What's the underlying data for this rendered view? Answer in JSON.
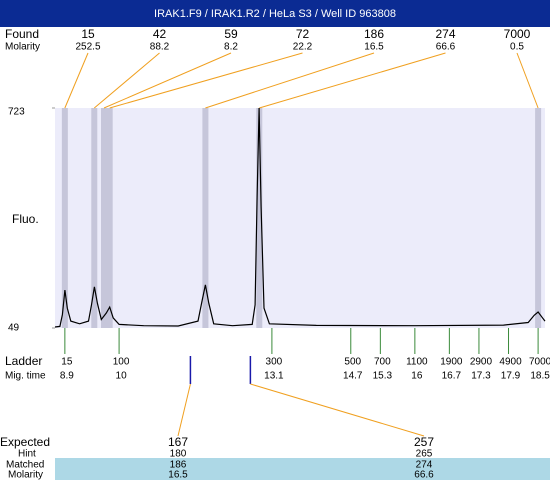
{
  "chart_data": {
    "type": "electropherogram",
    "title": "IRAK1.F9 / IRAK1.R2 / HeLa S3 / Well ID 963808",
    "y_label": "Fluo.",
    "x": [
      8.7,
      8.8,
      8.85,
      8.9,
      8.95,
      9.02,
      9.2,
      9.38,
      9.44,
      9.5,
      9.56,
      9.64,
      9.74,
      9.81,
      9.88,
      10.0,
      10.5,
      11.2,
      11.6,
      11.68,
      11.75,
      11.82,
      11.92,
      12.3,
      12.7,
      12.76,
      12.8,
      12.84,
      12.88,
      12.94,
      13.05,
      14.0,
      16.0,
      17.8,
      18.3,
      18.42,
      18.5,
      18.58,
      18.64
    ],
    "values": [
      52,
      54,
      90,
      165,
      110,
      70,
      62,
      70,
      120,
      175,
      125,
      75,
      95,
      113,
      80,
      60,
      56,
      55,
      70,
      130,
      181,
      125,
      62,
      56,
      60,
      120,
      450,
      723,
      420,
      110,
      62,
      57,
      56,
      58,
      66,
      88,
      98,
      82,
      70
    ],
    "xlim": [
      8.7,
      18.64
    ],
    "ylim": [
      49,
      723
    ],
    "yticks": [
      49,
      723
    ],
    "found": {
      "label": "Found",
      "molarity_label": "Molarity",
      "sizes": [
        15,
        42,
        59,
        72,
        186,
        274,
        7000
      ],
      "molarity": [
        252.5,
        88.2,
        8.2,
        22.2,
        16.5,
        66.6,
        0.5
      ]
    },
    "ladder": {
      "label": "Ladder",
      "time_label": "Mig. time",
      "sizes": [
        15,
        100,
        300,
        500,
        700,
        1100,
        1900,
        2900,
        4900,
        7000
      ],
      "times": [
        8.9,
        10,
        13.1,
        14.7,
        15.3,
        16,
        16.7,
        17.3,
        17.9,
        18.5
      ]
    },
    "expected": {
      "label": "Expected",
      "hint_label": "Hint",
      "matched_label": "Matched",
      "molarity_label": "Molarity",
      "sizes": [
        167,
        257
      ],
      "hint": [
        180,
        265
      ],
      "matched": [
        186,
        274
      ],
      "molarity": [
        16.5,
        66.6
      ]
    }
  }
}
